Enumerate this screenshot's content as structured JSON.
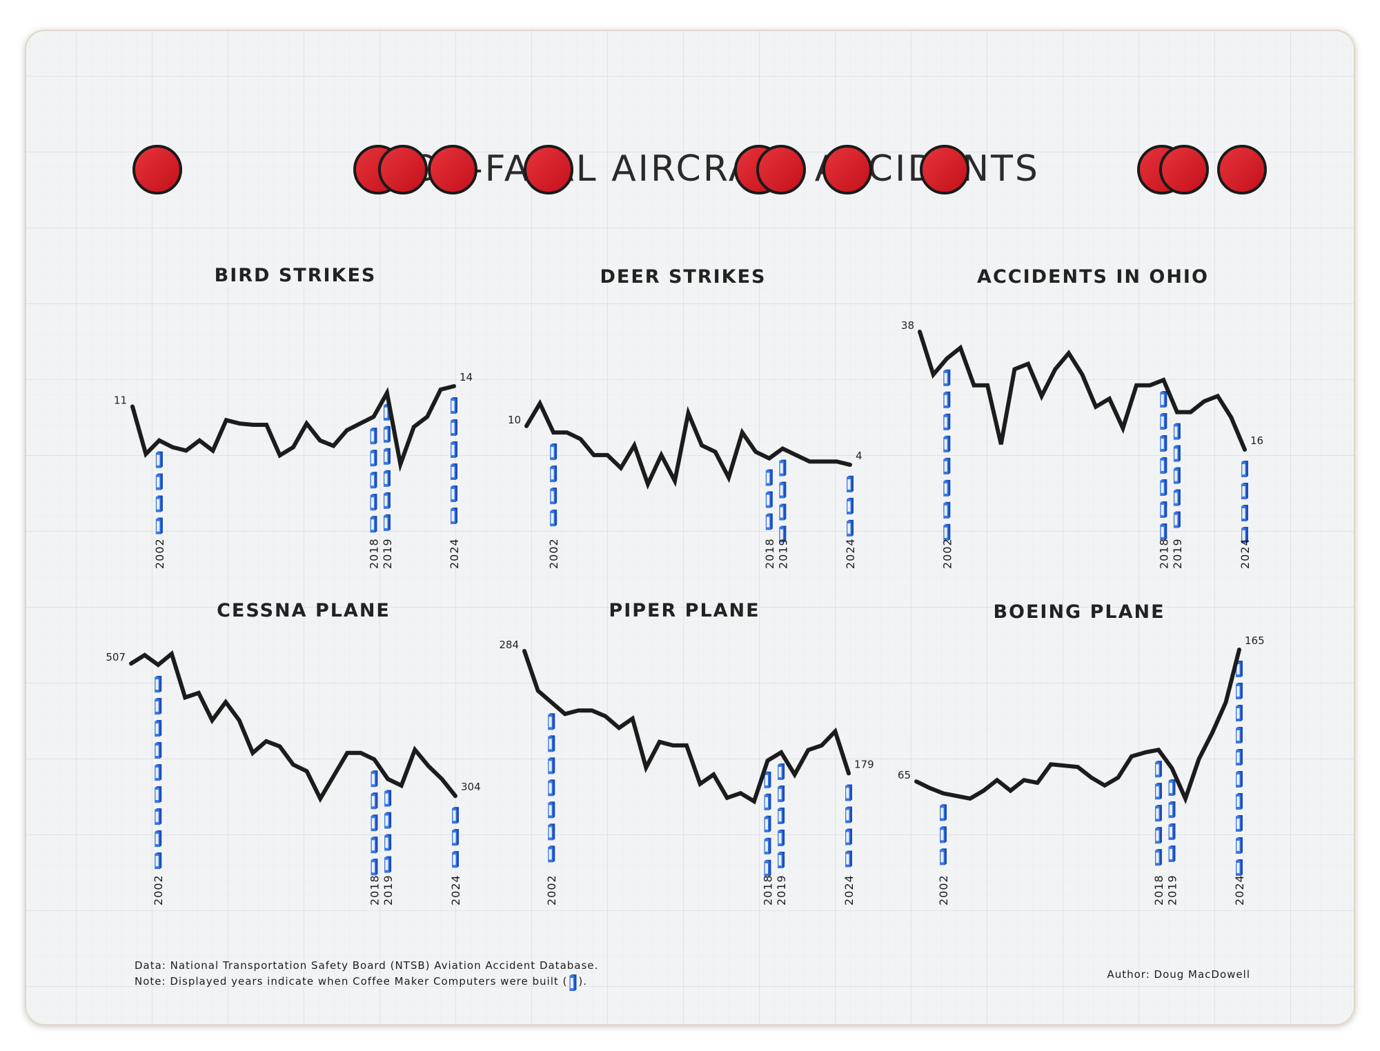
{
  "title": "NON-FATAL AIRCRAFT ACCIDENTS",
  "footnote": {
    "data_line": "Data: National Transportation Safety Board (NTSB) Aviation Accident Database.",
    "note_line": "Note: Displayed years indicate when Coffee Maker Computers were built (",
    "note_end": ").",
    "author": "Author: Doug MacDowell"
  },
  "colors": {
    "board": "#f2f3f4",
    "line": "#1c1c1c",
    "dot_fill": "#d6161f",
    "dot_outline": "#1a1a1a",
    "marker_blue": "#2f6fe0",
    "grid": "#c9ced3"
  },
  "icons": {
    "marker": "coffee-maker-computer-icon"
  },
  "chart_data": [
    {
      "type": "line",
      "title": "BIRD STRIKES",
      "x": [
        2000,
        2001,
        2002,
        2003,
        2004,
        2005,
        2006,
        2007,
        2008,
        2009,
        2010,
        2011,
        2012,
        2013,
        2014,
        2015,
        2016,
        2017,
        2018,
        2019,
        2020,
        2021,
        2022,
        2023,
        2024
      ],
      "values": [
        11,
        4,
        6,
        5,
        4.5,
        6,
        4.5,
        9,
        8.5,
        8.3,
        8.3,
        3.8,
        5,
        8.5,
        6,
        5.2,
        7.5,
        8.5,
        9.5,
        13,
        2.5,
        8,
        9.5,
        13.5,
        14
      ],
      "start_label": "11",
      "end_label": "14",
      "highlight_years": [
        "2002",
        "2018",
        "2019",
        "2024"
      ]
    },
    {
      "type": "line",
      "title": "DEER STRIKES",
      "x": [
        2000,
        2001,
        2002,
        2003,
        2004,
        2005,
        2006,
        2007,
        2008,
        2009,
        2010,
        2011,
        2012,
        2013,
        2014,
        2015,
        2016,
        2017,
        2018,
        2019,
        2020,
        2021,
        2022,
        2023,
        2024
      ],
      "values": [
        10,
        13.5,
        9,
        9,
        8,
        5.5,
        5.5,
        3.5,
        7,
        1,
        5.5,
        1.5,
        12,
        7,
        6,
        2,
        9,
        6,
        5,
        6.5,
        5.5,
        4.5,
        4.5,
        4.5,
        4
      ],
      "start_label": "10",
      "end_label": "4",
      "highlight_years": [
        "2002",
        "2018",
        "2019",
        "2024"
      ]
    },
    {
      "type": "line",
      "title": "ACCIDENTS IN OHIO",
      "x": [
        2000,
        2001,
        2002,
        2003,
        2004,
        2005,
        2006,
        2007,
        2008,
        2009,
        2010,
        2011,
        2012,
        2013,
        2014,
        2015,
        2016,
        2017,
        2018,
        2019,
        2020,
        2021,
        2022,
        2023,
        2024
      ],
      "values": [
        38,
        30,
        33,
        35,
        28,
        28,
        17,
        31,
        32,
        26,
        31,
        34,
        30,
        24,
        25.5,
        20,
        28,
        28,
        29,
        23,
        23,
        25,
        26,
        22,
        16
      ],
      "start_label": "38",
      "end_label": "16",
      "highlight_years": [
        "2002",
        "2018",
        "2019",
        "2024"
      ]
    },
    {
      "type": "line",
      "title": "CESSNA PLANE",
      "x": [
        2000,
        2001,
        2002,
        2003,
        2004,
        2005,
        2006,
        2007,
        2008,
        2009,
        2010,
        2011,
        2012,
        2013,
        2014,
        2015,
        2016,
        2017,
        2018,
        2019,
        2020,
        2021,
        2022,
        2023,
        2024
      ],
      "values": [
        507,
        520,
        505,
        522,
        455,
        462,
        420,
        448,
        420,
        370,
        388,
        380,
        352,
        342,
        300,
        335,
        370,
        370,
        360,
        330,
        320,
        375,
        350,
        330,
        304
      ],
      "start_label": "507",
      "end_label": "304",
      "highlight_years": [
        "2002",
        "2018",
        "2019",
        "2024"
      ]
    },
    {
      "type": "line",
      "title": "PIPER PLANE",
      "x": [
        2000,
        2001,
        2002,
        2003,
        2004,
        2005,
        2006,
        2007,
        2008,
        2009,
        2010,
        2011,
        2012,
        2013,
        2014,
        2015,
        2016,
        2017,
        2018,
        2019,
        2020,
        2021,
        2022,
        2023,
        2024
      ],
      "values": [
        284,
        250,
        240,
        230,
        233,
        233,
        228,
        218,
        226,
        184,
        206,
        203,
        203,
        170,
        178,
        158,
        162,
        155,
        190,
        197,
        178,
        199,
        203,
        215,
        179
      ],
      "start_label": "284",
      "end_label": "179",
      "highlight_years": [
        "2002",
        "2018",
        "2019",
        "2024"
      ]
    },
    {
      "type": "line",
      "title": "BOEING PLANE",
      "x": [
        2000,
        2001,
        2002,
        2003,
        2004,
        2005,
        2006,
        2007,
        2008,
        2009,
        2010,
        2011,
        2012,
        2013,
        2014,
        2015,
        2016,
        2017,
        2018,
        2019,
        2020,
        2021,
        2022,
        2023,
        2024
      ],
      "values": [
        65,
        60,
        56,
        54,
        52,
        58,
        66,
        58,
        66,
        64,
        78,
        77,
        76,
        68,
        62,
        68,
        84,
        87,
        89,
        75,
        52,
        82,
        102,
        125,
        165
      ],
      "start_label": "65",
      "end_label": "165",
      "highlight_years": [
        "2002",
        "2018",
        "2019",
        "2024"
      ]
    }
  ]
}
